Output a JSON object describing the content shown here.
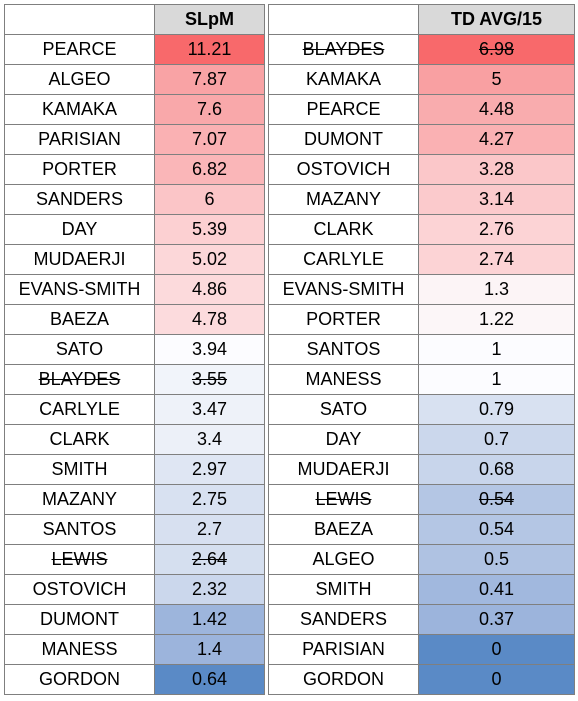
{
  "tables": [
    {
      "header": "SLpM",
      "rows": [
        {
          "name": "PEARCE",
          "value": "11.21",
          "color": "#f8696b"
        },
        {
          "name": "ALGEO",
          "value": "7.87",
          "color": "#f9a3a5"
        },
        {
          "name": "KAMAKA",
          "value": "7.6",
          "color": "#f9a8aa"
        },
        {
          "name": "PARISIAN",
          "value": "7.07",
          "color": "#fab1b3"
        },
        {
          "name": "PORTER",
          "value": "6.82",
          "color": "#fab6b8"
        },
        {
          "name": "SANDERS",
          "value": "6",
          "color": "#fbc5c7"
        },
        {
          "name": "DAY",
          "value": "5.39",
          "color": "#fcd0d2"
        },
        {
          "name": "MUDAERJI",
          "value": "5.02",
          "color": "#fcd7d9"
        },
        {
          "name": "EVANS-SMITH",
          "value": "4.86",
          "color": "#fcdadc"
        },
        {
          "name": "BAEZA",
          "value": "4.78",
          "color": "#fcdbdd"
        },
        {
          "name": "SATO",
          "value": "3.94",
          "color": "#fcfcff"
        },
        {
          "name": "BLAYDES",
          "value": "3.55",
          "color": "#f1f4fa",
          "struck": true
        },
        {
          "name": "CARLYLE",
          "value": "3.47",
          "color": "#eef2f9"
        },
        {
          "name": "CLARK",
          "value": "3.4",
          "color": "#ecf0f8"
        },
        {
          "name": "SMITH",
          "value": "2.97",
          "color": "#dfe6f3"
        },
        {
          "name": "MAZANY",
          "value": "2.75",
          "color": "#d8e1f1"
        },
        {
          "name": "SANTOS",
          "value": "2.7",
          "color": "#d7e0f0"
        },
        {
          "name": "LEWIS",
          "value": "2.64",
          "color": "#d5dfef",
          "struck": true
        },
        {
          "name": "OSTOVICH",
          "value": "2.32",
          "color": "#cbd7ec"
        },
        {
          "name": "DUMONT",
          "value": "1.42",
          "color": "#9db5dc"
        },
        {
          "name": "MANESS",
          "value": "1.4",
          "color": "#9cb4dc"
        },
        {
          "name": "GORDON",
          "value": "0.64",
          "color": "#5a8ac6"
        }
      ]
    },
    {
      "header": "TD AVG/15",
      "rows": [
        {
          "name": "BLAYDES",
          "value": "6.98",
          "color": "#f8696b",
          "struck": true
        },
        {
          "name": "KAMAKA",
          "value": "5",
          "color": "#f9a0a2"
        },
        {
          "name": "PEARCE",
          "value": "4.48",
          "color": "#f9acae"
        },
        {
          "name": "DUMONT",
          "value": "4.27",
          "color": "#fab1b3"
        },
        {
          "name": "OSTOVICH",
          "value": "3.28",
          "color": "#fbc7c9"
        },
        {
          "name": "MAZANY",
          "value": "3.14",
          "color": "#fbcacc"
        },
        {
          "name": "CLARK",
          "value": "2.76",
          "color": "#fcd3d5"
        },
        {
          "name": "CARLYLE",
          "value": "2.74",
          "color": "#fcd3d5"
        },
        {
          "name": "EVANS-SMITH",
          "value": "1.3",
          "color": "#fcf4f6"
        },
        {
          "name": "PORTER",
          "value": "1.22",
          "color": "#fcf6f8"
        },
        {
          "name": "SANTOS",
          "value": "1",
          "color": "#fcfcff"
        },
        {
          "name": "MANESS",
          "value": "1",
          "color": "#fcfcff"
        },
        {
          "name": "SATO",
          "value": "0.79",
          "color": "#d8e1f1"
        },
        {
          "name": "DAY",
          "value": "0.7",
          "color": "#cbd7ec"
        },
        {
          "name": "MUDAERJI",
          "value": "0.68",
          "color": "#c8d5eb"
        },
        {
          "name": "LEWIS",
          "value": "0.54",
          "color": "#b4c6e4",
          "struck": true
        },
        {
          "name": "BAEZA",
          "value": "0.54",
          "color": "#b4c6e4"
        },
        {
          "name": "ALGEO",
          "value": "0.5",
          "color": "#afc2e2"
        },
        {
          "name": "SMITH",
          "value": "0.41",
          "color": "#a1b8de"
        },
        {
          "name": "SANDERS",
          "value": "0.37",
          "color": "#9cb4dc"
        },
        {
          "name": "PARISIAN",
          "value": "0",
          "color": "#5a8ac6"
        },
        {
          "name": "GORDON",
          "value": "0",
          "color": "#5a8ac6"
        }
      ]
    }
  ],
  "chart_data": [
    {
      "type": "table",
      "columns": [
        "",
        "SLpM"
      ],
      "categories": [
        "PEARCE",
        "ALGEO",
        "KAMAKA",
        "PARISIAN",
        "PORTER",
        "SANDERS",
        "DAY",
        "MUDAERJI",
        "EVANS-SMITH",
        "BAEZA",
        "SATO",
        "BLAYDES",
        "CARLYLE",
        "CLARK",
        "SMITH",
        "MAZANY",
        "SANTOS",
        "LEWIS",
        "OSTOVICH",
        "DUMONT",
        "MANESS",
        "GORDON"
      ],
      "values": [
        11.21,
        7.87,
        7.6,
        7.07,
        6.82,
        6,
        5.39,
        5.02,
        4.86,
        4.78,
        3.94,
        3.55,
        3.47,
        3.4,
        2.97,
        2.75,
        2.7,
        2.64,
        2.32,
        1.42,
        1.4,
        0.64
      ]
    },
    {
      "type": "table",
      "columns": [
        "",
        "TD AVG/15"
      ],
      "categories": [
        "BLAYDES",
        "KAMAKA",
        "PEARCE",
        "DUMONT",
        "OSTOVICH",
        "MAZANY",
        "CLARK",
        "CARLYLE",
        "EVANS-SMITH",
        "PORTER",
        "SANTOS",
        "MANESS",
        "SATO",
        "DAY",
        "MUDAERJI",
        "LEWIS",
        "BAEZA",
        "ALGEO",
        "SMITH",
        "SANDERS",
        "PARISIAN",
        "GORDON"
      ],
      "values": [
        6.98,
        5,
        4.48,
        4.27,
        3.28,
        3.14,
        2.76,
        2.74,
        1.3,
        1.22,
        1,
        1,
        0.79,
        0.7,
        0.68,
        0.54,
        0.54,
        0.5,
        0.41,
        0.37,
        0,
        0
      ]
    }
  ]
}
